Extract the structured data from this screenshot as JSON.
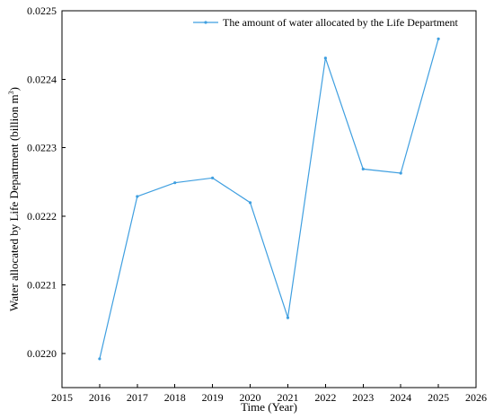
{
  "chart_data": {
    "type": "line",
    "xlabel": "Time (Year)",
    "ylabel_main": "Water allocated by Life Department (billion m",
    "ylabel_sup": "3",
    "ylabel_close": ")",
    "xlim": [
      2015,
      2026
    ],
    "ylim": [
      0.02195,
      0.0225
    ],
    "xticks": [
      2015,
      2016,
      2017,
      2018,
      2019,
      2020,
      2021,
      2022,
      2023,
      2024,
      2025,
      2026
    ],
    "yticks": [
      0.022,
      0.0221,
      0.0222,
      0.0223,
      0.0224,
      0.0225
    ],
    "ytick_labels": [
      "0.0220",
      "0.0221",
      "0.0222",
      "0.0223",
      "0.0224",
      "0.0225"
    ],
    "legend_position": "top-right",
    "series": [
      {
        "name": "The amount of water allocated by the Life Department",
        "color": "#3f9fe0",
        "x": [
          2016,
          2017,
          2018,
          2019,
          2020,
          2021,
          2022,
          2023,
          2024,
          2025
        ],
        "y": [
          0.021992,
          0.022229,
          0.022249,
          0.022256,
          0.02222,
          0.022052,
          0.022431,
          0.022269,
          0.022263,
          0.022459
        ]
      }
    ]
  }
}
